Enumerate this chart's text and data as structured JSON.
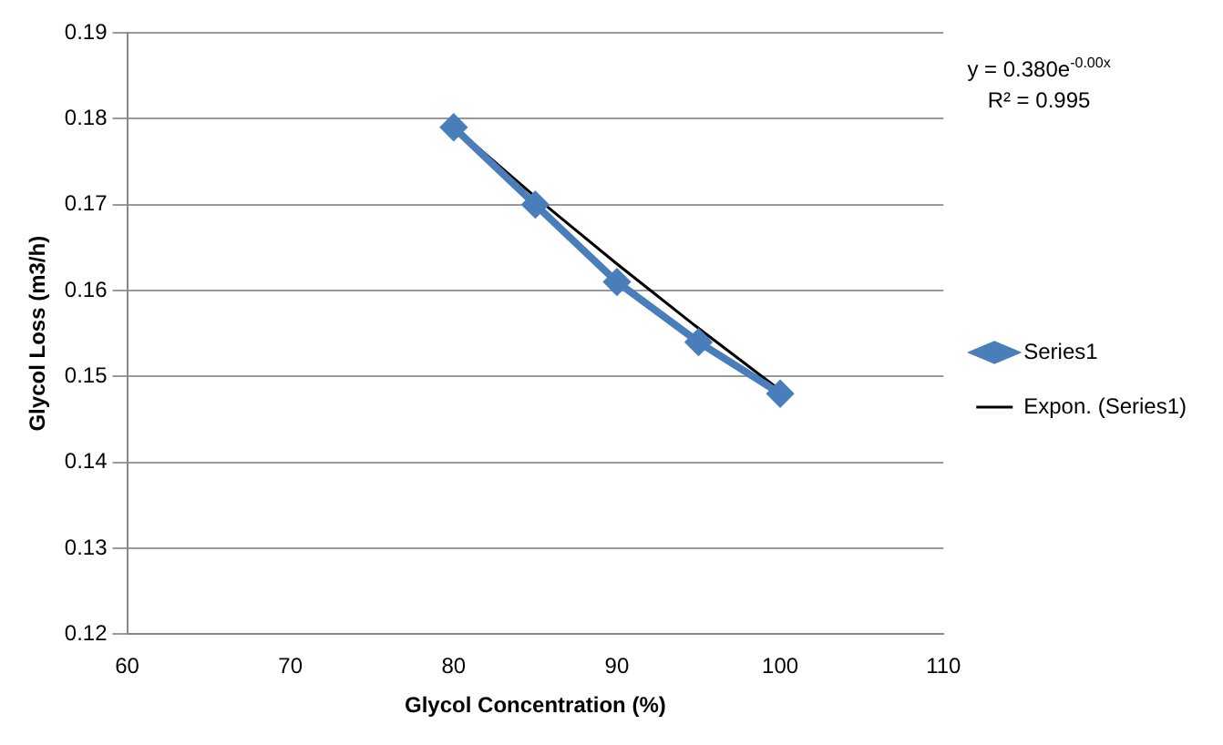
{
  "chart_data": {
    "type": "line",
    "xlabel": "Glycol Concentration (%)",
    "ylabel": "Glycol Loss (m3/h)",
    "xlim": [
      60,
      110
    ],
    "xticks": [
      60,
      70,
      80,
      90,
      100,
      110
    ],
    "ylim": [
      0.12,
      0.19
    ],
    "yticks": [
      0.12,
      0.13,
      0.14,
      0.15,
      0.16,
      0.17,
      0.18,
      0.19
    ],
    "grid": "y",
    "legend": "right",
    "annotations": [
      "y = 0.380e$^{-0.00x}$",
      "R² = 0.995"
    ],
    "series": [
      {
        "name": "Series1",
        "color": "#4a7ebb",
        "marker": "diamond",
        "x": [
          80,
          85,
          90,
          95,
          100
        ],
        "values": [
          0.179,
          0.17,
          0.161,
          0.154,
          0.148
        ]
      },
      {
        "name": "Expon. (Series1)",
        "color": "#000000",
        "marker": "none",
        "x": [
          80,
          85,
          90,
          95,
          100
        ],
        "values": [
          0.1791,
          0.1709,
          0.1631,
          0.1556,
          0.1484
        ]
      }
    ]
  }
}
